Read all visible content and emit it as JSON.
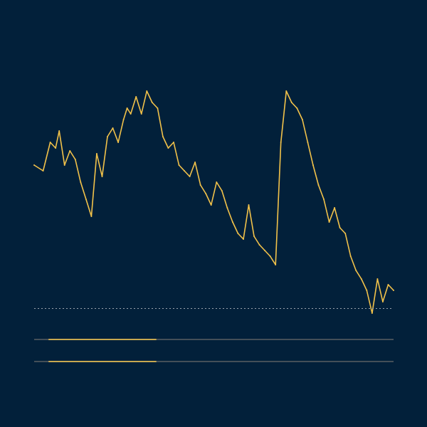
{
  "colors": {
    "background": "#02203a",
    "line": "#f2c24a",
    "axis": "#9aa3ad",
    "navigator_track": "#5a5f63",
    "navigator_selection": "#c8a850"
  },
  "chart_data": {
    "type": "line",
    "title": "",
    "xlabel": "",
    "ylabel": "",
    "grid": false,
    "legend": "none",
    "ylim": [
      0,
      110
    ],
    "x": [
      0,
      5,
      9,
      12,
      14,
      17,
      20,
      23,
      26,
      29,
      32,
      35,
      38,
      41,
      44,
      47,
      50,
      52,
      54,
      57,
      60,
      63,
      66,
      69,
      72,
      75,
      78,
      81,
      84,
      87,
      90,
      93,
      96,
      99,
      102,
      105,
      108,
      111,
      114,
      117,
      120,
      123,
      126,
      129,
      132,
      135,
      138,
      141,
      144,
      147,
      150,
      153,
      156,
      159,
      162,
      165,
      168,
      171,
      174,
      177,
      180,
      183,
      186,
      189,
      192,
      195,
      198,
      201
    ],
    "series": [
      {
        "values": [
          62,
          60,
          70,
          68,
          74,
          62,
          67,
          64,
          56,
          50,
          44,
          66,
          58,
          72,
          75,
          70,
          78,
          82,
          80,
          86,
          80,
          88,
          84,
          82,
          72,
          68,
          70,
          62,
          60,
          58,
          63,
          55,
          52,
          48,
          56,
          53,
          47,
          42,
          38,
          36,
          48,
          37,
          34,
          32,
          30,
          27,
          70,
          88,
          84,
          82,
          78,
          70,
          62,
          55,
          50,
          42,
          47,
          40,
          38,
          30,
          25,
          22,
          18,
          10,
          22,
          14,
          20,
          18
        ]
      }
    ]
  },
  "navigator": {
    "selection_start": 0.04,
    "selection_end": 0.34
  }
}
